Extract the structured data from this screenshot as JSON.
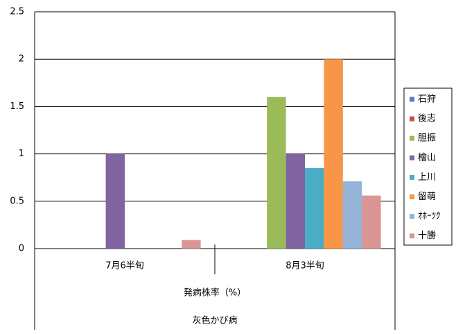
{
  "chart_data": {
    "type": "bar",
    "categories": [
      "7月6半旬",
      "8月3半旬"
    ],
    "x_group_label": "発病株率（%）",
    "x_outer_label": "灰色かび病",
    "series": [
      {
        "name": "石狩",
        "color": "#4f81bd",
        "values": [
          null,
          null
        ]
      },
      {
        "name": "後志",
        "color": "#c0504d",
        "values": [
          null,
          null
        ]
      },
      {
        "name": "胆振",
        "color": "#9bbb59",
        "values": [
          null,
          1.6
        ]
      },
      {
        "name": "檜山",
        "color": "#8064a2",
        "values": [
          1,
          1
        ]
      },
      {
        "name": "上川",
        "color": "#4bacc6",
        "values": [
          null,
          0.85
        ]
      },
      {
        "name": "留萌",
        "color": "#f79646",
        "values": [
          null,
          2
        ]
      },
      {
        "name": "ｵﾎｰﾂｸ",
        "color": "#95b3d7",
        "values": [
          null,
          0.71
        ]
      },
      {
        "name": "十勝",
        "color": "#d99694",
        "values": [
          0.09,
          0.56
        ]
      }
    ],
    "ylim": [
      0,
      2.5
    ],
    "yticks": [
      0,
      0.5,
      1,
      1.5,
      2,
      2.5
    ],
    "grid": true,
    "legend": "right"
  }
}
